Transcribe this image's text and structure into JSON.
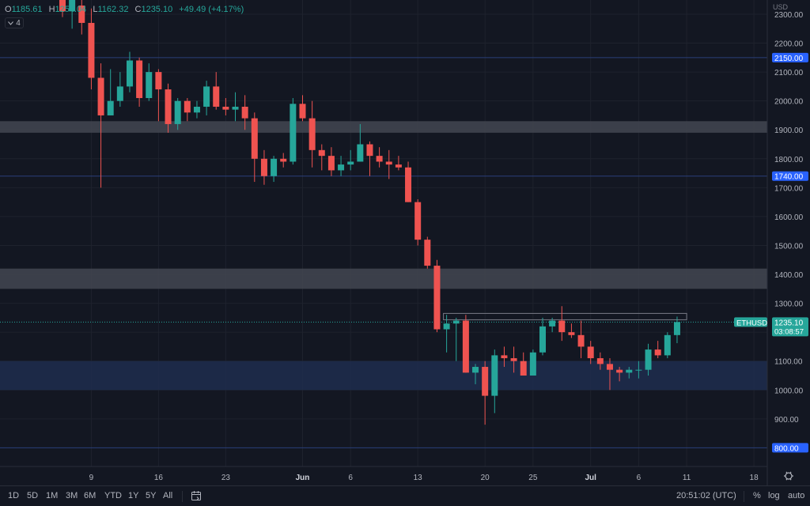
{
  "ohlc": {
    "o_label": "O",
    "o": "1185.61",
    "h_label": "H",
    "h": "1254.04",
    "l_label": "L",
    "l": "1162.32",
    "c_label": "C",
    "c": "1235.10",
    "change": "+49.49 (+4.17%)"
  },
  "collapse_count": "4",
  "currency": "USD",
  "colors": {
    "up": "#26a69a",
    "down": "#ef5350",
    "bg": "#131722",
    "grid": "#1e222d",
    "hline": "#2962ff",
    "accent": "#2962ff"
  },
  "bottom_bar": {
    "ranges": [
      "1D",
      "5D",
      "1M",
      "3M",
      "6M",
      "YTD",
      "1Y",
      "5Y",
      "All"
    ],
    "calendar_icon": "calendar-icon",
    "time": "20:51:02 (UTC)",
    "percent": "%",
    "log": "log",
    "auto": "auto"
  },
  "chart_data": {
    "type": "candlestick",
    "symbol": "ETHUSD",
    "last_price": "1235.10",
    "countdown": "03:08:57",
    "y_axis": {
      "unit": "USD",
      "min": 720,
      "max": 2370,
      "ticks": [
        900,
        1000,
        1100,
        1200,
        1300,
        1400,
        1500,
        1600,
        1700,
        1800,
        1900,
        2000,
        2100,
        2200,
        2300
      ]
    },
    "x_ticks": [
      {
        "label": "9",
        "i": 3
      },
      {
        "label": "16",
        "i": 10
      },
      {
        "label": "23",
        "i": 17
      },
      {
        "label": "Jun",
        "i": 25,
        "bold": true
      },
      {
        "label": "6",
        "i": 30
      },
      {
        "label": "13",
        "i": 37
      },
      {
        "label": "20",
        "i": 44
      },
      {
        "label": "25",
        "i": 49
      },
      {
        "label": "Jul",
        "i": 55,
        "bold": true
      },
      {
        "label": "6",
        "i": 60
      },
      {
        "label": "11",
        "i": 65
      },
      {
        "label": "18",
        "i": 72
      }
    ],
    "price_labels": [
      {
        "value": 2150,
        "text": "2150.00"
      },
      {
        "value": 1740,
        "text": "1740.00"
      },
      {
        "value": 800,
        "text": "800.00"
      }
    ],
    "horizontal_lines": [
      2150,
      1740,
      800
    ],
    "zones": [
      {
        "from": 1890,
        "to": 1930,
        "color": "#434651"
      },
      {
        "from": 1350,
        "to": 1420,
        "color": "#434651"
      },
      {
        "from": 1000,
        "to": 1100,
        "color": "#1e2d4e"
      }
    ],
    "candles": [
      [
        2350,
        2400,
        2290,
        2310
      ],
      [
        2310,
        2380,
        2250,
        2360
      ],
      [
        2330,
        2420,
        2230,
        2270
      ],
      [
        2270,
        2320,
        2040,
        2080
      ],
      [
        2080,
        2130,
        1700,
        1950
      ],
      [
        1950,
        2110,
        1950,
        2000
      ],
      [
        2000,
        2100,
        1980,
        2050
      ],
      [
        2050,
        2170,
        2030,
        2140
      ],
      [
        2140,
        2150,
        1980,
        2010
      ],
      [
        2010,
        2130,
        2000,
        2100
      ],
      [
        2100,
        2110,
        1930,
        2040
      ],
      [
        2040,
        2060,
        1890,
        1920
      ],
      [
        1920,
        2010,
        1900,
        2000
      ],
      [
        2000,
        2010,
        1930,
        1960
      ],
      [
        1960,
        2000,
        1940,
        1980
      ],
      [
        1980,
        2070,
        1950,
        2050
      ],
      [
        2050,
        2100,
        1970,
        1980
      ],
      [
        1980,
        2010,
        1950,
        1970
      ],
      [
        1970,
        2030,
        1930,
        1980
      ],
      [
        1980,
        2020,
        1900,
        1940
      ],
      [
        1940,
        1960,
        1720,
        1800
      ],
      [
        1800,
        1830,
        1710,
        1740
      ],
      [
        1740,
        1810,
        1720,
        1800
      ],
      [
        1800,
        1820,
        1770,
        1790
      ],
      [
        1790,
        2010,
        1780,
        1990
      ],
      [
        1990,
        2020,
        1930,
        1940
      ],
      [
        1940,
        2000,
        1770,
        1830
      ],
      [
        1830,
        1850,
        1760,
        1810
      ],
      [
        1810,
        1840,
        1740,
        1760
      ],
      [
        1760,
        1810,
        1740,
        1780
      ],
      [
        1780,
        1830,
        1760,
        1790
      ],
      [
        1790,
        1920,
        1790,
        1850
      ],
      [
        1850,
        1860,
        1740,
        1810
      ],
      [
        1810,
        1840,
        1770,
        1790
      ],
      [
        1790,
        1830,
        1730,
        1780
      ],
      [
        1780,
        1810,
        1760,
        1770
      ],
      [
        1770,
        1790,
        1650,
        1650
      ],
      [
        1650,
        1660,
        1500,
        1520
      ],
      [
        1520,
        1530,
        1420,
        1430
      ],
      [
        1430,
        1450,
        1200,
        1210
      ],
      [
        1210,
        1260,
        1130,
        1230
      ],
      [
        1230,
        1250,
        1100,
        1240
      ],
      [
        1240,
        1260,
        1060,
        1060
      ],
      [
        1060,
        1090,
        1020,
        1080
      ],
      [
        1080,
        1100,
        880,
        980
      ],
      [
        980,
        1140,
        920,
        1120
      ],
      [
        1120,
        1150,
        1080,
        1110
      ],
      [
        1110,
        1150,
        1060,
        1100
      ],
      [
        1100,
        1130,
        1050,
        1050
      ],
      [
        1050,
        1140,
        1050,
        1130
      ],
      [
        1130,
        1250,
        1120,
        1220
      ],
      [
        1220,
        1250,
        1200,
        1240
      ],
      [
        1240,
        1290,
        1170,
        1200
      ],
      [
        1200,
        1230,
        1180,
        1190
      ],
      [
        1190,
        1240,
        1110,
        1150
      ],
      [
        1150,
        1170,
        1090,
        1110
      ],
      [
        1110,
        1130,
        1070,
        1090
      ],
      [
        1090,
        1110,
        1000,
        1070
      ],
      [
        1070,
        1080,
        1030,
        1060
      ],
      [
        1060,
        1080,
        1040,
        1070
      ],
      [
        1070,
        1100,
        1040,
        1070
      ],
      [
        1070,
        1160,
        1050,
        1140
      ],
      [
        1140,
        1170,
        1110,
        1120
      ],
      [
        1120,
        1200,
        1110,
        1190
      ],
      [
        1190,
        1254,
        1162,
        1235
      ]
    ]
  }
}
